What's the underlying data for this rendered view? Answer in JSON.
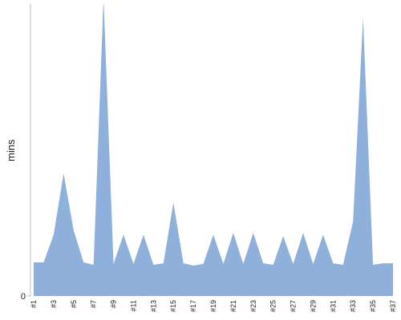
{
  "chart_data": {
    "type": "area",
    "y_label": "mins",
    "color": "#8fb0db",
    "categories": [
      "#1",
      null,
      "#3",
      null,
      "#5",
      null,
      "#7",
      null,
      "#9",
      null,
      "#11",
      null,
      "#13",
      null,
      "#15",
      null,
      "#17",
      null,
      "#19",
      null,
      "#21",
      null,
      "#23",
      null,
      "#25",
      null,
      "#27",
      null,
      "#29",
      null,
      "#31",
      null,
      "#33",
      null,
      "#35",
      null,
      "#37"
    ],
    "values": [
      11.5,
      11.5,
      21,
      42,
      22.5,
      11.5,
      10.7,
      102,
      11,
      21,
      11,
      21,
      10.7,
      11.2,
      32,
      11.2,
      10.4,
      11,
      21,
      11,
      21.6,
      11,
      21.6,
      11.2,
      10.7,
      20.5,
      11,
      21.6,
      11,
      21,
      11.2,
      10.7,
      25.5,
      95.3,
      10.7,
      11.2,
      11.2
    ],
    "ylim": [
      0,
      100
    ],
    "yticks": [
      0
    ]
  }
}
